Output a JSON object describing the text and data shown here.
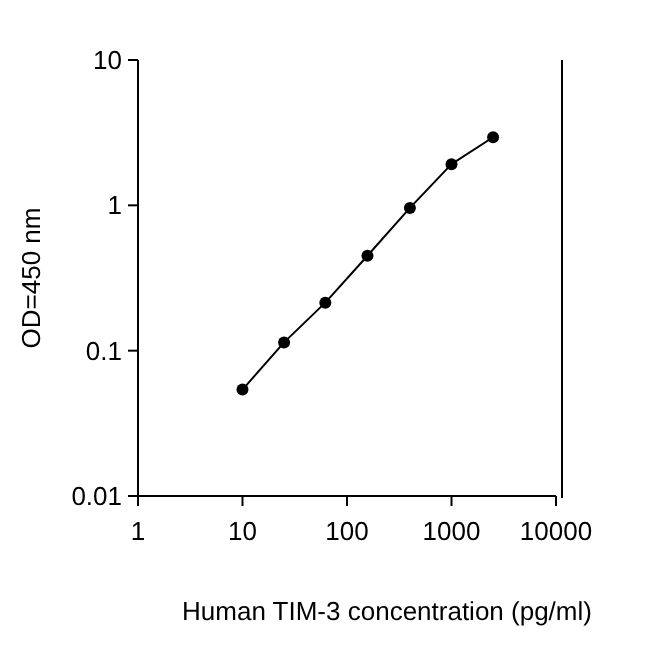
{
  "chart_data": {
    "type": "line",
    "xlabel": "Human TIM-3 concentration (pg/ml)",
    "ylabel": "OD=450 nm",
    "log": "xy",
    "marker": "circle",
    "line_style": "solid",
    "grid": false,
    "x": [
      10,
      25,
      62,
      157,
      400,
      1000,
      2500
    ],
    "series": [
      {
        "color": "#000000",
        "values": [
          0.054,
          0.114,
          0.214,
          0.45,
          0.96,
          1.92,
          2.94
        ]
      }
    ],
    "xlim": [
      1,
      10000
    ],
    "xticks": [
      1,
      10,
      100,
      1000,
      10000
    ],
    "ylim": [
      0.01,
      10
    ],
    "yticks": [
      0.01,
      0.1,
      1,
      10
    ]
  }
}
